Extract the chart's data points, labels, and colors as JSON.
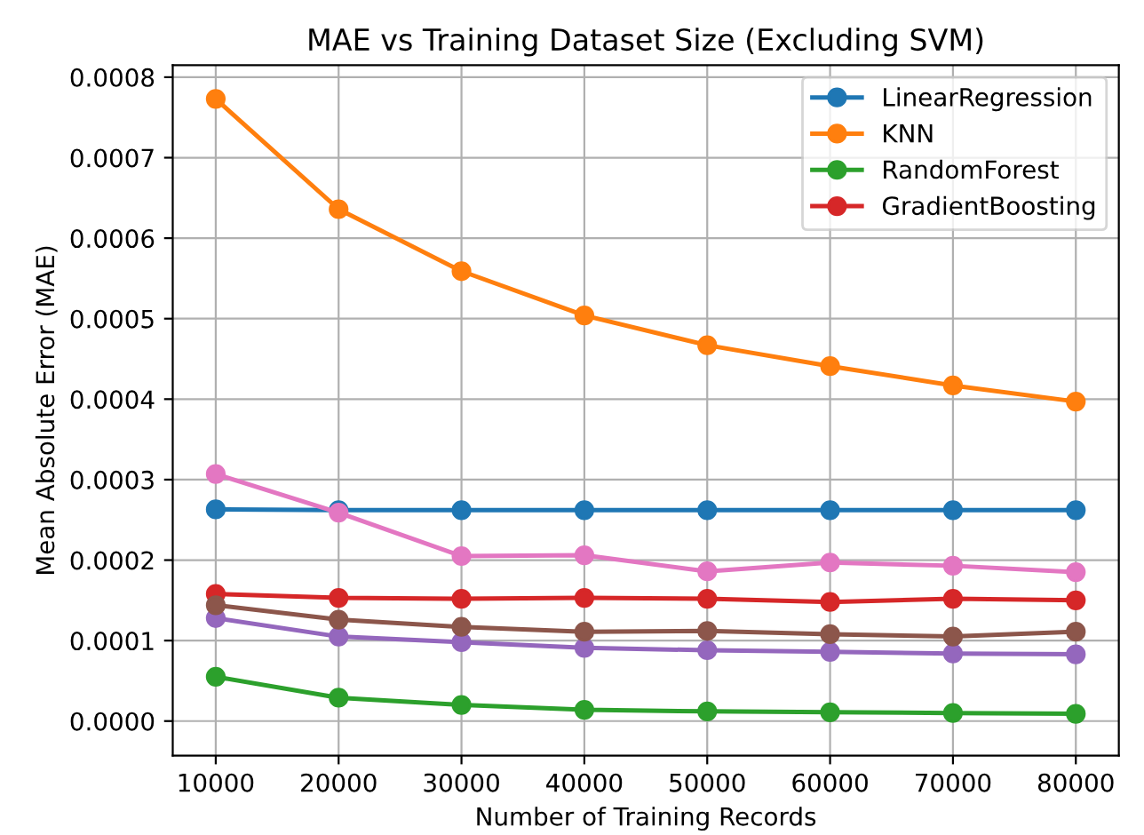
{
  "chart_data": {
    "type": "line",
    "title": "MAE vs Training Dataset Size (Excluding SVM)",
    "xlabel": "Number of Training Records",
    "ylabel": "Mean Absolute Error (MAE)",
    "x": [
      10000,
      20000,
      30000,
      40000,
      50000,
      60000,
      70000,
      80000
    ],
    "series": [
      {
        "name": "LinearRegression",
        "color": "#1f77b4",
        "values": [
          0.000263,
          0.000262,
          0.000262,
          0.000262,
          0.000262,
          0.000262,
          0.000262,
          0.000262
        ]
      },
      {
        "name": "KNN",
        "color": "#ff7f0e",
        "values": [
          0.000773,
          0.000636,
          0.000559,
          0.000504,
          0.000467,
          0.000441,
          0.000417,
          0.000397
        ]
      },
      {
        "name": "RandomForest",
        "color": "#2ca02c",
        "values": [
          5.5e-05,
          2.9e-05,
          2e-05,
          1.4e-05,
          1.2e-05,
          1.1e-05,
          1e-05,
          9e-06
        ]
      },
      {
        "name": "GradientBoosting",
        "color": "#d62728",
        "values": [
          0.000158,
          0.000153,
          0.000152,
          0.000153,
          0.000152,
          0.000148,
          0.000152,
          0.00015
        ]
      },
      {
        "color": "#9467bd",
        "values": [
          0.000128,
          0.000105,
          9.8e-05,
          9.1e-05,
          8.8e-05,
          8.6e-05,
          8.4e-05,
          8.3e-05
        ]
      },
      {
        "color": "#8c564b",
        "values": [
          0.000144,
          0.000126,
          0.000117,
          0.000111,
          0.000112,
          0.000108,
          0.000105,
          0.000111
        ]
      },
      {
        "color": "#e377c2",
        "values": [
          0.000307,
          0.000259,
          0.000205,
          0.000206,
          0.000186,
          0.000197,
          0.000193,
          0.000185
        ]
      }
    ],
    "xlim": [
      6500,
      83500
    ],
    "ylim": [
      -4.3e-05,
      0.000815
    ],
    "xticks": [
      10000,
      20000,
      30000,
      40000,
      50000,
      60000,
      70000,
      80000
    ],
    "yticks": [
      {
        "value": 0,
        "label": "0.0000"
      },
      {
        "value": 0.0001,
        "label": "0.0001"
      },
      {
        "value": 0.0002,
        "label": "0.0002"
      },
      {
        "value": 0.0003,
        "label": "0.0003"
      },
      {
        "value": 0.0004,
        "label": "0.0004"
      },
      {
        "value": 0.0005,
        "label": "0.0005"
      },
      {
        "value": 0.0006,
        "label": "0.0006"
      },
      {
        "value": 0.0007,
        "label": "0.0007"
      },
      {
        "value": 0.0008,
        "label": "0.0008"
      }
    ],
    "grid": true,
    "legend": "top right",
    "marker": "circle",
    "line_style": "solid"
  }
}
